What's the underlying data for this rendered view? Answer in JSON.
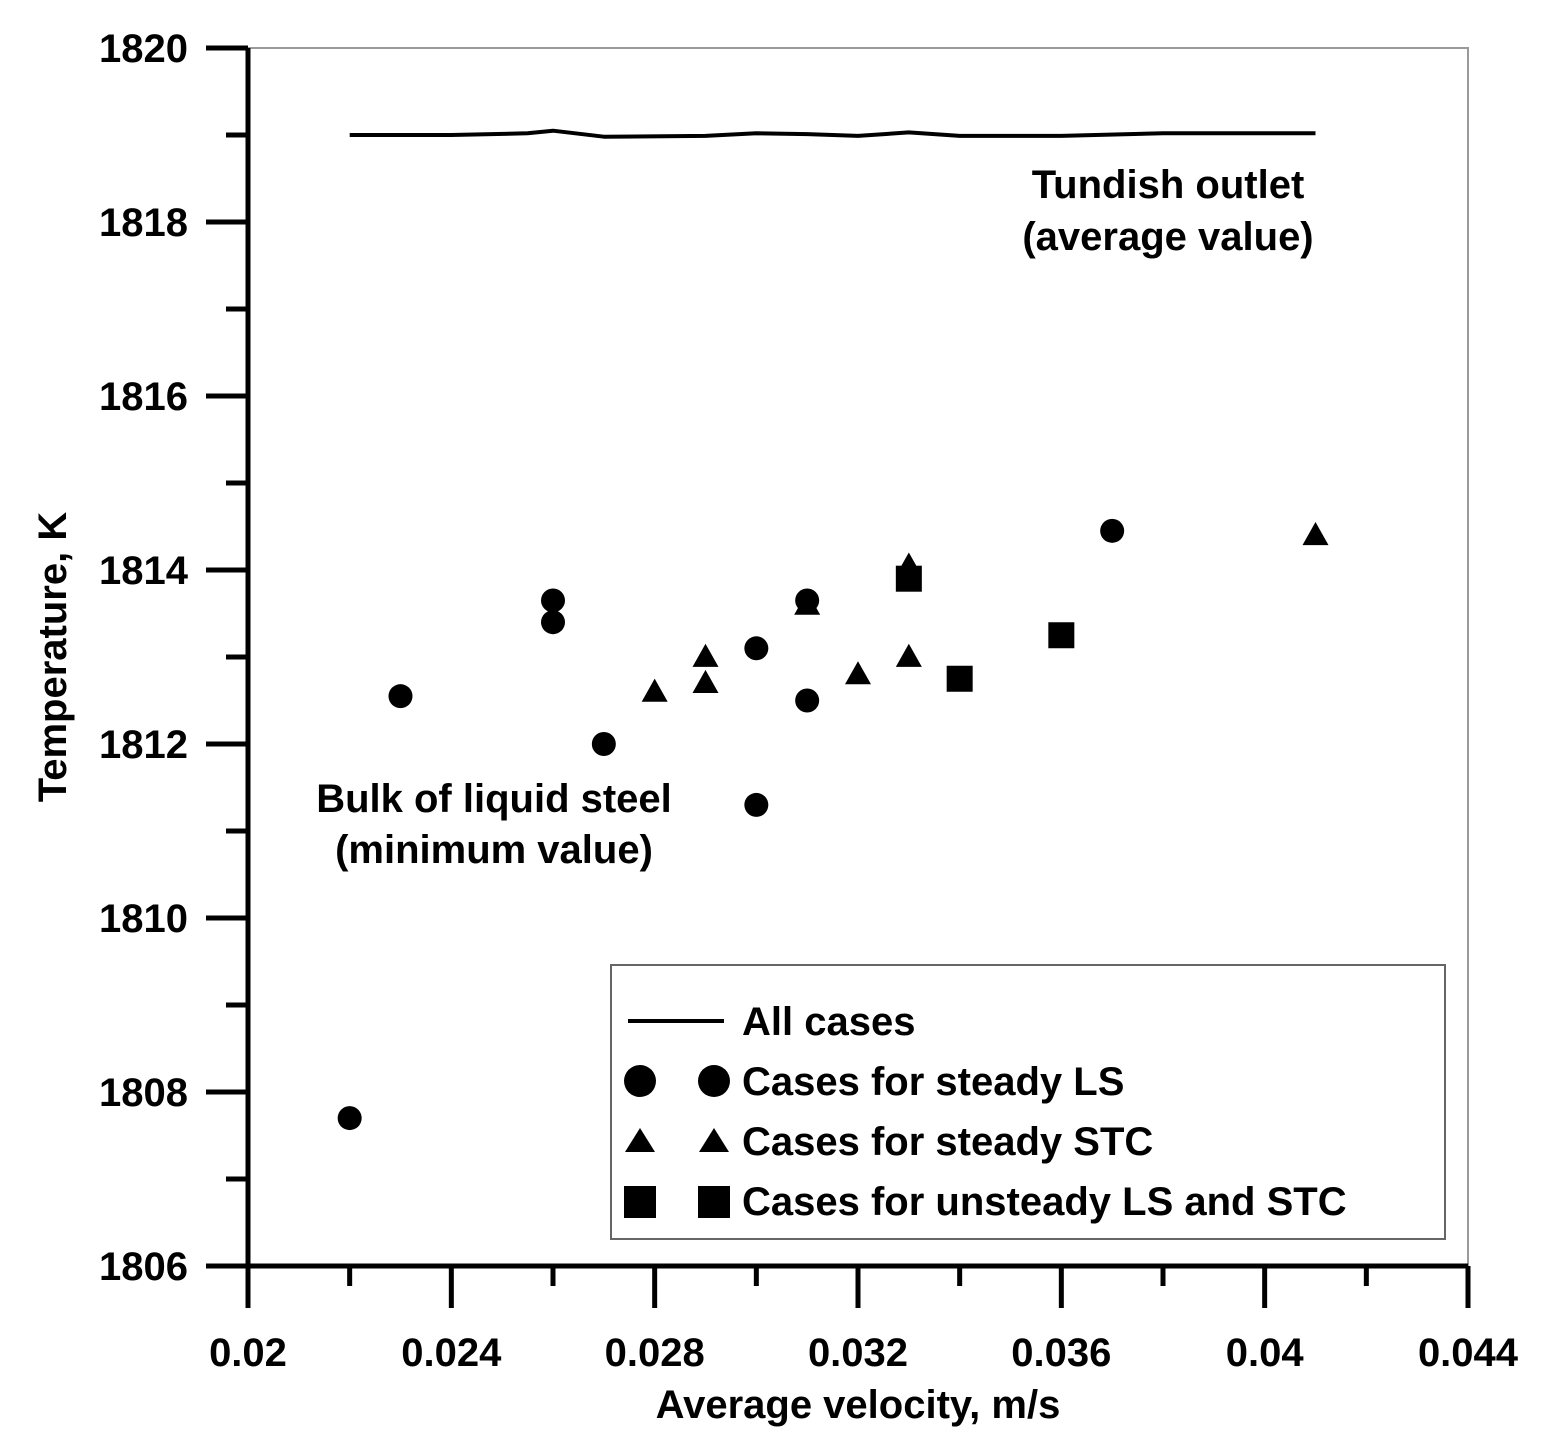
{
  "chart_data": {
    "type": "scatter",
    "xlabel": "Average velocity, m/s",
    "ylabel": "Temperature, K",
    "xlim": [
      0.02,
      0.044
    ],
    "ylim": [
      1806,
      1820
    ],
    "x_ticks": [
      "0.02",
      "0.024",
      "0.028",
      "0.032",
      "0.036",
      "0.04",
      "0.044"
    ],
    "x_tick_values": [
      0.02,
      0.024,
      0.028,
      0.032,
      0.036,
      0.04,
      0.044
    ],
    "x_minor_ticks": [
      0.022,
      0.026,
      0.03,
      0.034,
      0.038,
      0.042
    ],
    "y_ticks": [
      "1806",
      "1808",
      "1810",
      "1812",
      "1814",
      "1816",
      "1818",
      "1820"
    ],
    "y_tick_values": [
      1806,
      1808,
      1810,
      1812,
      1814,
      1816,
      1818,
      1820
    ],
    "y_minor_ticks": [
      1807,
      1809,
      1811,
      1813,
      1815,
      1817,
      1819
    ],
    "grid": false,
    "legend_position": "bottom-right",
    "series": [
      {
        "name": "All cases",
        "kind": "line",
        "marker": "none",
        "x": [
          0.022,
          0.024,
          0.0255,
          0.026,
          0.027,
          0.029,
          0.03,
          0.031,
          0.032,
          0.033,
          0.034,
          0.036,
          0.038,
          0.041
        ],
        "y": [
          1819.0,
          1819.0,
          1819.02,
          1819.05,
          1818.98,
          1818.99,
          1819.02,
          1819.01,
          1818.99,
          1819.03,
          1818.99,
          1818.99,
          1819.02,
          1819.02
        ]
      },
      {
        "name": "Cases for steady LS",
        "kind": "points",
        "marker": "circle",
        "x": [
          0.022,
          0.023,
          0.026,
          0.026,
          0.027,
          0.03,
          0.03,
          0.031,
          0.031,
          0.037
        ],
        "y": [
          1807.7,
          1812.55,
          1813.65,
          1813.4,
          1812.0,
          1813.1,
          1811.3,
          1813.65,
          1812.5,
          1814.45
        ]
      },
      {
        "name": "Cases for steady STC",
        "kind": "points",
        "marker": "triangle",
        "x": [
          0.028,
          0.029,
          0.029,
          0.031,
          0.032,
          0.033,
          0.033,
          0.041
        ],
        "y": [
          1812.6,
          1813.0,
          1812.7,
          1813.6,
          1812.8,
          1813.0,
          1814.05,
          1814.4
        ]
      },
      {
        "name": "Cases for unsteady LS and STC",
        "kind": "points",
        "marker": "square",
        "x": [
          0.033,
          0.034,
          0.036
        ],
        "y": [
          1813.9,
          1812.75,
          1813.25
        ]
      }
    ],
    "annotations": [
      {
        "id": "outlet",
        "lines": [
          "Tundish outlet",
          "(average value)"
        ]
      },
      {
        "id": "bulk",
        "lines": [
          "Bulk of liquid steel",
          "(minimum value)"
        ]
      }
    ],
    "legend": [
      {
        "label": "All cases",
        "marker": "line"
      },
      {
        "label": "Cases for steady LS",
        "marker": "circle"
      },
      {
        "label": "Cases for steady STC",
        "marker": "triangle"
      },
      {
        "label": "Cases for unsteady LS and STC",
        "marker": "square"
      }
    ]
  }
}
